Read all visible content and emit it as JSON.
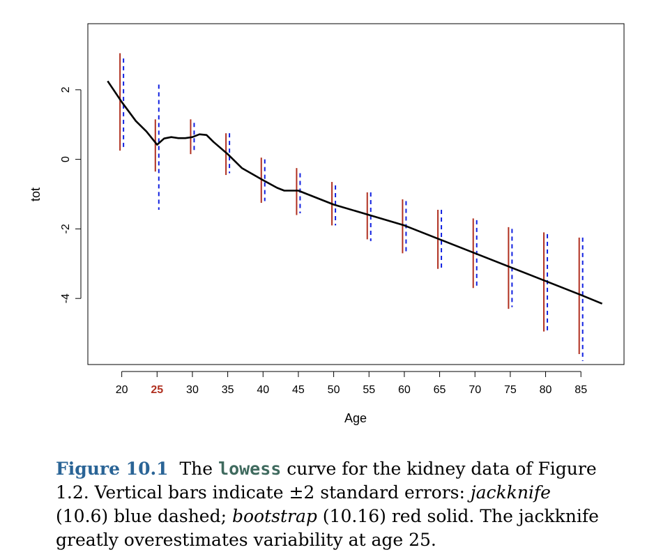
{
  "chart_data": {
    "type": "line",
    "xlabel": "Age",
    "ylabel": "tot",
    "xlim": [
      15.2,
      91.1
    ],
    "ylim": [
      -5.9,
      3.9
    ],
    "xticks": [
      20,
      25,
      30,
      35,
      40,
      45,
      50,
      55,
      60,
      65,
      70,
      75,
      80,
      85
    ],
    "yticks": [
      -4,
      -2,
      0,
      2
    ],
    "highlight_tick": 25,
    "highlight_color": "#b03020",
    "curve": {
      "name": "lowess",
      "color": "#000000",
      "x": [
        18,
        20,
        22,
        23.5,
        25,
        26,
        27,
        28,
        29,
        30,
        31,
        32,
        33,
        35,
        37,
        40,
        42,
        43,
        45,
        50,
        55,
        60,
        65,
        70,
        75,
        80,
        85,
        88
      ],
      "y": [
        2.25,
        1.65,
        1.1,
        0.8,
        0.42,
        0.6,
        0.64,
        0.61,
        0.61,
        0.64,
        0.72,
        0.7,
        0.5,
        0.15,
        -0.25,
        -0.6,
        -0.82,
        -0.9,
        -0.9,
        -1.3,
        -1.6,
        -1.9,
        -2.3,
        -2.7,
        -3.1,
        -3.5,
        -3.9,
        -4.15
      ]
    },
    "bootstrap_bars": {
      "name": "bootstrap",
      "style": "red solid",
      "color": "#b03020",
      "x": [
        20,
        25,
        30,
        35,
        40,
        45,
        50,
        55,
        60,
        65,
        70,
        75,
        80,
        85
      ],
      "low": [
        0.25,
        -0.35,
        0.15,
        -0.45,
        -1.25,
        -1.6,
        -1.9,
        -2.3,
        -2.7,
        -3.15,
        -3.7,
        -4.3,
        -4.95,
        -5.6
      ],
      "high": [
        3.05,
        1.15,
        1.15,
        0.75,
        0.05,
        -0.25,
        -0.65,
        -0.95,
        -1.15,
        -1.45,
        -1.7,
        -1.95,
        -2.1,
        -2.25
      ]
    },
    "jackknife_bars": {
      "name": "jackknife",
      "style": "blue dashed",
      "color": "#1020e0",
      "x": [
        20,
        25,
        30,
        35,
        40,
        45,
        50,
        55,
        60,
        65,
        70,
        75,
        80,
        85
      ],
      "low": [
        0.3,
        -1.45,
        0.2,
        -0.4,
        -1.2,
        -1.55,
        -1.9,
        -2.35,
        -2.7,
        -3.15,
        -3.7,
        -4.25,
        -4.95,
        -5.8
      ],
      "high": [
        2.9,
        2.15,
        1.05,
        0.75,
        0.0,
        -0.4,
        -0.75,
        -0.95,
        -1.2,
        -1.45,
        -1.75,
        -2.0,
        -2.15,
        -2.25
      ]
    }
  },
  "caption": {
    "label": "Figure 10.1",
    "part1": "The ",
    "code": "lowess",
    "part2": " curve for the kidney data of Figure 1.2. Vertical bars indicate ±2 standard errors: ",
    "jackknife": "jackknife",
    "part3": " (10.6) blue dashed; ",
    "bootstrap": "bootstrap",
    "part4": " (10.16) red solid. The jackknife greatly overestimates variability at age 25."
  }
}
